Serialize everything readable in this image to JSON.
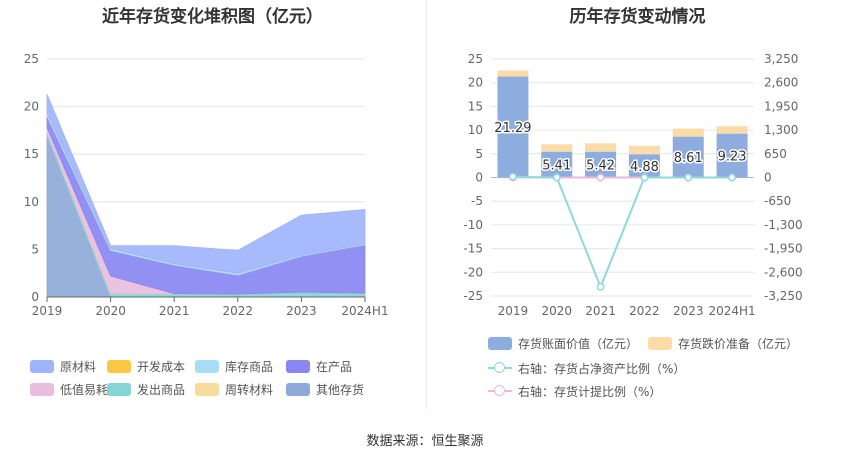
{
  "left_title": "近年存货变化堆积图（亿元）",
  "right_title": "历年存货变动情况",
  "source_label": "数据来源：恒生聚源",
  "chart_data": [
    {
      "type": "area",
      "title": "近年存货变化堆积图（亿元）",
      "stacked": true,
      "categories": [
        "2019",
        "2020",
        "2021",
        "2022",
        "2023",
        "2024H1"
      ],
      "ylim": [
        0,
        25
      ],
      "yticks": [
        0,
        5,
        10,
        15,
        20,
        25
      ],
      "grid": true,
      "legend_position": "bottom",
      "series": [
        {
          "name": "其他存货",
          "color": "#8eaad8",
          "values": [
            17.0,
            0.0,
            0.0,
            0.0,
            0.0,
            0.0
          ]
        },
        {
          "name": "发出商品",
          "color": "#86d5d6",
          "values": [
            0.3,
            0.4,
            0.35,
            0.3,
            0.5,
            0.4
          ]
        },
        {
          "name": "周转材料",
          "color": "#f9dc9c",
          "values": [
            0.0,
            0.0,
            0.0,
            0.0,
            0.0,
            0.0
          ]
        },
        {
          "name": "低值易耗品",
          "color": "#e9bedc",
          "values": [
            0.5,
            1.8,
            0.0,
            0.0,
            0.0,
            0.0
          ]
        },
        {
          "name": "在产品",
          "color": "#8a87f2",
          "values": [
            1.2,
            2.7,
            3.0,
            2.0,
            3.8,
            5.1
          ]
        },
        {
          "name": "库存商品",
          "color": "#a9ddf5",
          "values": [
            0.3,
            0.2,
            0.15,
            0.2,
            0.1,
            0.1
          ]
        },
        {
          "name": "开发成本",
          "color": "#fbc744",
          "values": [
            0.0,
            0.0,
            0.0,
            0.0,
            0.0,
            0.0
          ]
        },
        {
          "name": "原材料",
          "color": "#9fb4fc",
          "values": [
            2.0,
            0.3,
            1.9,
            2.4,
            4.2,
            3.6
          ]
        }
      ],
      "legend_order": [
        "原材料",
        "开发成本",
        "库存商品",
        "在产品",
        "低值易耗品",
        "发出商品",
        "周转材料",
        "其他存货"
      ]
    },
    {
      "type": "bar",
      "title": "历年存货变动情况",
      "categories": [
        "2019",
        "2020",
        "2021",
        "2022",
        "2023",
        "2024H1"
      ],
      "ylim": [
        -25,
        25
      ],
      "yticks": [
        25,
        20,
        15,
        10,
        5,
        0,
        -5,
        -10,
        -15,
        -20,
        -25
      ],
      "y2lim": [
        -3250,
        3250
      ],
      "y2ticks": [
        "3,250",
        "2,600",
        "1,950",
        "1,300",
        "650",
        "0",
        "-650",
        "-1,300",
        "-1,950",
        "-2,600",
        "-3,250"
      ],
      "grid": true,
      "legend_position": "bottom",
      "series": [
        {
          "name": "存货账面价值（亿元）",
          "kind": "bar",
          "color": "#8eaddf",
          "values": [
            21.29,
            5.41,
            5.42,
            4.88,
            8.61,
            9.23
          ],
          "labels": [
            "21.29",
            "5.41",
            "5.42",
            "4.88",
            "8.61",
            "9.23"
          ]
        },
        {
          "name": "存货跌价准备（亿元）",
          "kind": "bar",
          "color": "#fbdca8",
          "values": [
            1.3,
            1.6,
            1.8,
            1.8,
            1.7,
            1.6
          ]
        },
        {
          "name": "右轴：存货占净资产比例（%）",
          "kind": "line",
          "axis": "right",
          "color": "#8fd8db",
          "values": [
            22,
            0,
            -3000,
            0,
            0,
            0
          ]
        },
        {
          "name": "右轴：存货计提比例（%）",
          "kind": "line",
          "axis": "right",
          "color": "#eab9da",
          "values": [
            0,
            0,
            0,
            0,
            0,
            0
          ]
        }
      ]
    }
  ]
}
